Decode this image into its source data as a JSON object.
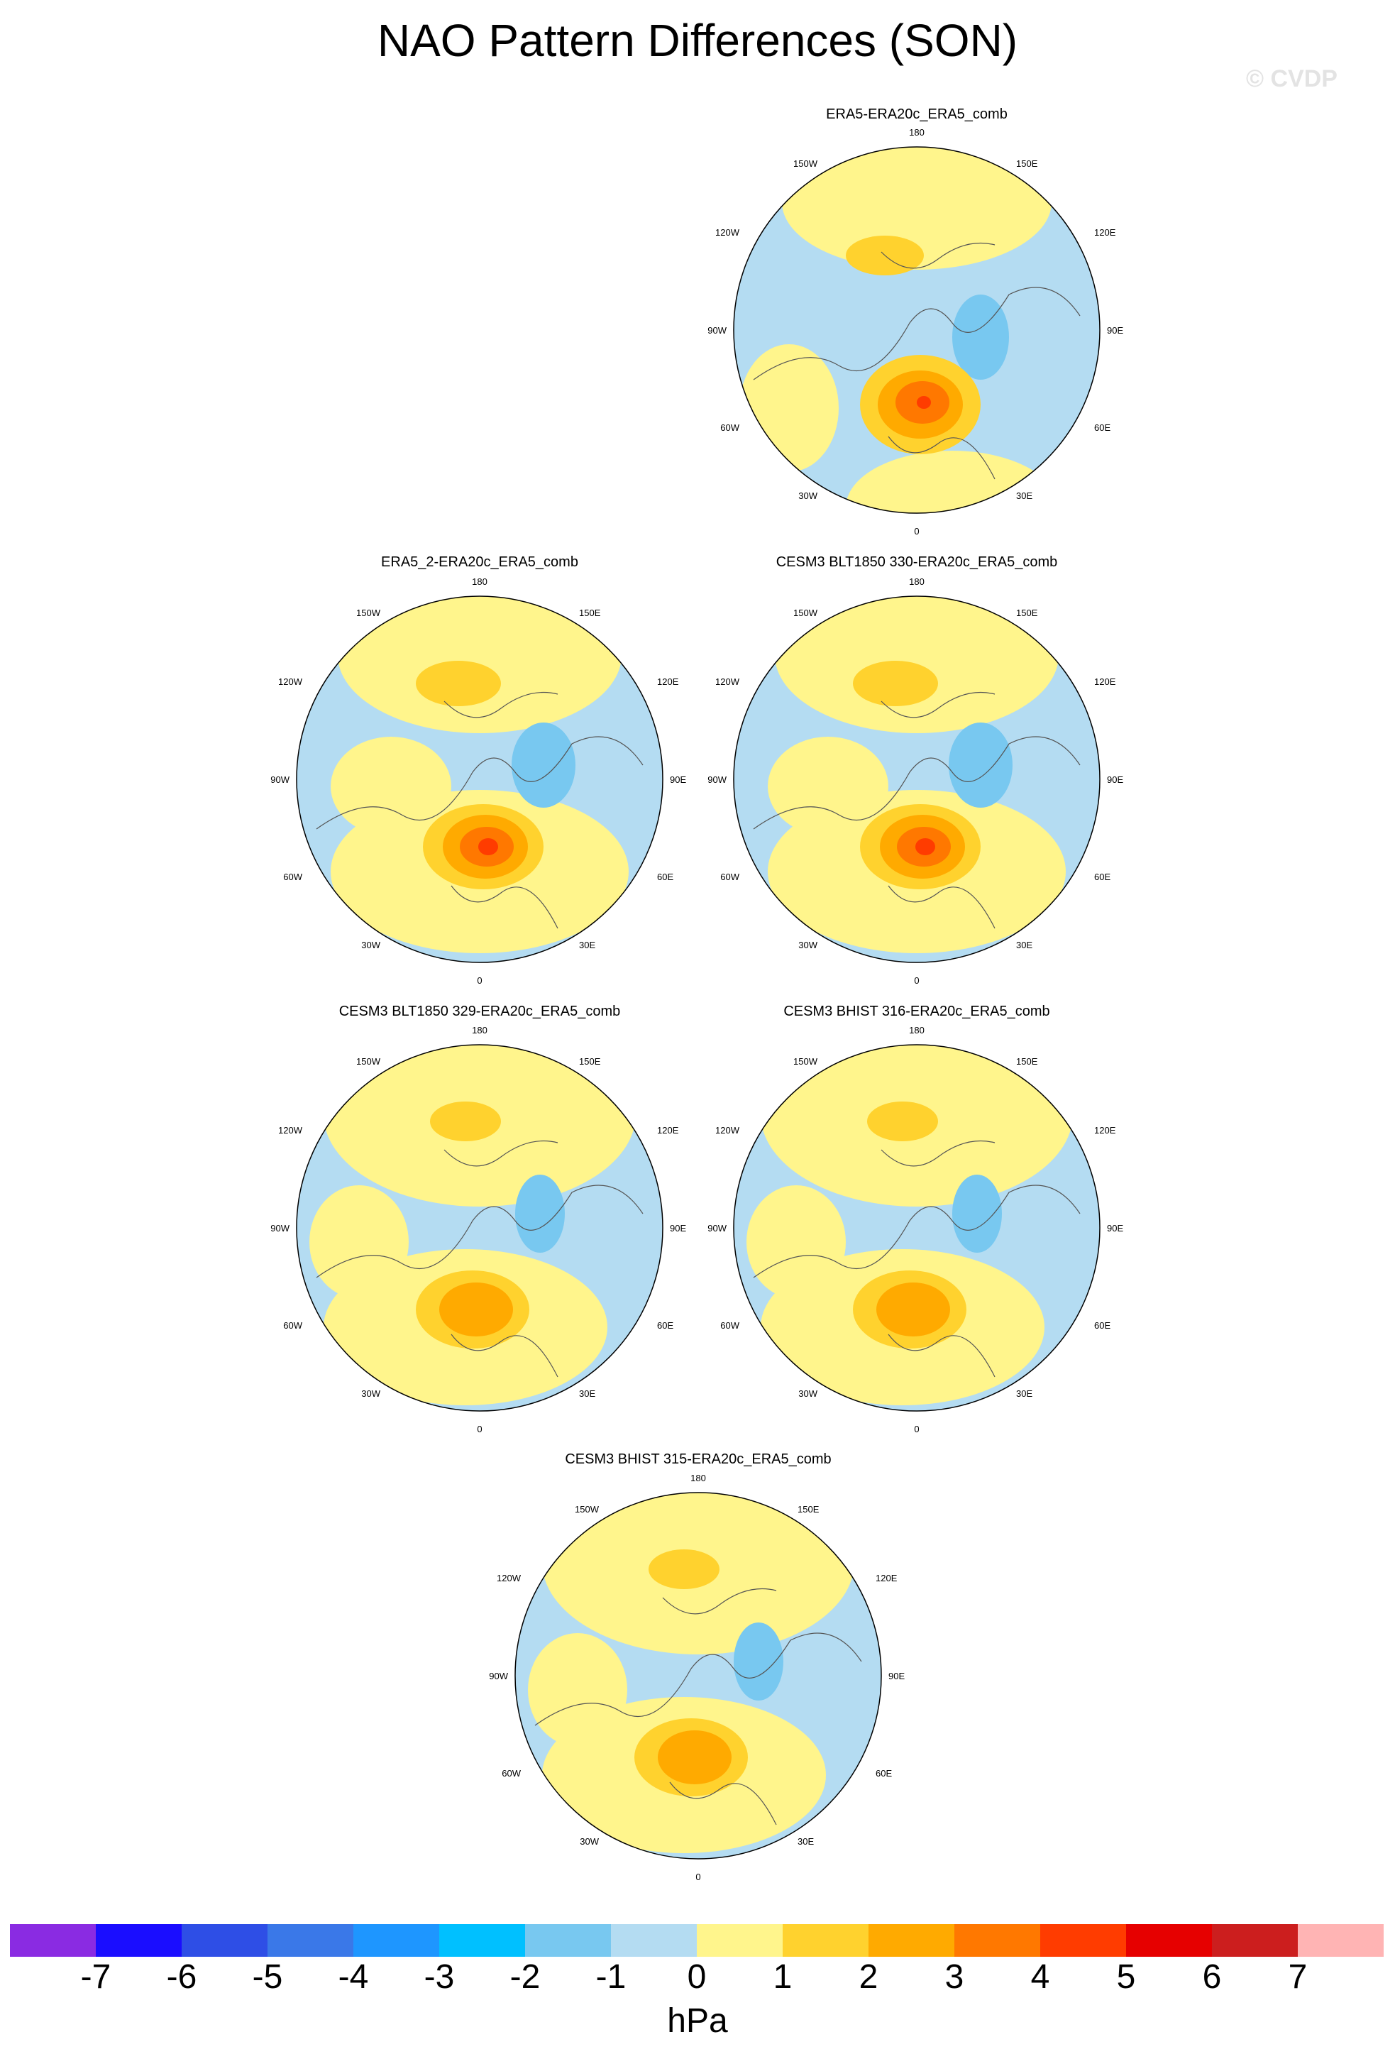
{
  "title": "NAO Pattern Differences (SON)",
  "watermark": "© CVDP",
  "panels": [
    {
      "title": "ERA5-ERA20c_ERA5_comb",
      "pattern": "upper-left"
    },
    {
      "title": "ERA5_2-ERA20c_ERA5_comb",
      "pattern": "strong"
    },
    {
      "title": "CESM3 BLT1850 330-ERA20c_ERA5_comb",
      "pattern": "strong"
    },
    {
      "title": "CESM3 BLT1850 329-ERA20c_ERA5_comb",
      "pattern": "moderate"
    },
    {
      "title": "CESM3 BHIST 316-ERA20c_ERA5_comb",
      "pattern": "moderate"
    },
    {
      "title": "CESM3 BHIST 315-ERA20c_ERA5_comb",
      "pattern": "moderate"
    }
  ],
  "longitude_labels": {
    "top": "180",
    "bottom": "0",
    "upper_left": "150W",
    "upper_right": "150E",
    "left_upper": "120W",
    "right_upper": "120E",
    "left": "90W",
    "right": "90E",
    "left_lower": "60W",
    "right_lower": "60E",
    "lower_left": "30W",
    "lower_right": "30E"
  },
  "colorbar": {
    "unit": "hPa",
    "ticks": [
      "-7",
      "-6",
      "-5",
      "-4",
      "-3",
      "-2",
      "-1",
      "0",
      "1",
      "2",
      "3",
      "4",
      "5",
      "6",
      "7"
    ],
    "colors": [
      "#8a2be2",
      "#1a0dff",
      "#2e4ee6",
      "#3a78e8",
      "#1e96ff",
      "#00c0ff",
      "#78c8f0",
      "#b4dcf2",
      "#fff58c",
      "#ffd22e",
      "#ffaa00",
      "#ff7800",
      "#ff3c00",
      "#e60000",
      "#cc1e1e",
      "#ffb4b4"
    ]
  },
  "colors": {
    "neg1": "#b4dcf2",
    "neg2": "#78c8f0",
    "neg3": "#00c0ff",
    "pos1": "#fff58c",
    "pos2": "#ffd22e",
    "pos3": "#ffaa00",
    "pos4": "#ff7800",
    "pos5": "#ff3c00"
  }
}
